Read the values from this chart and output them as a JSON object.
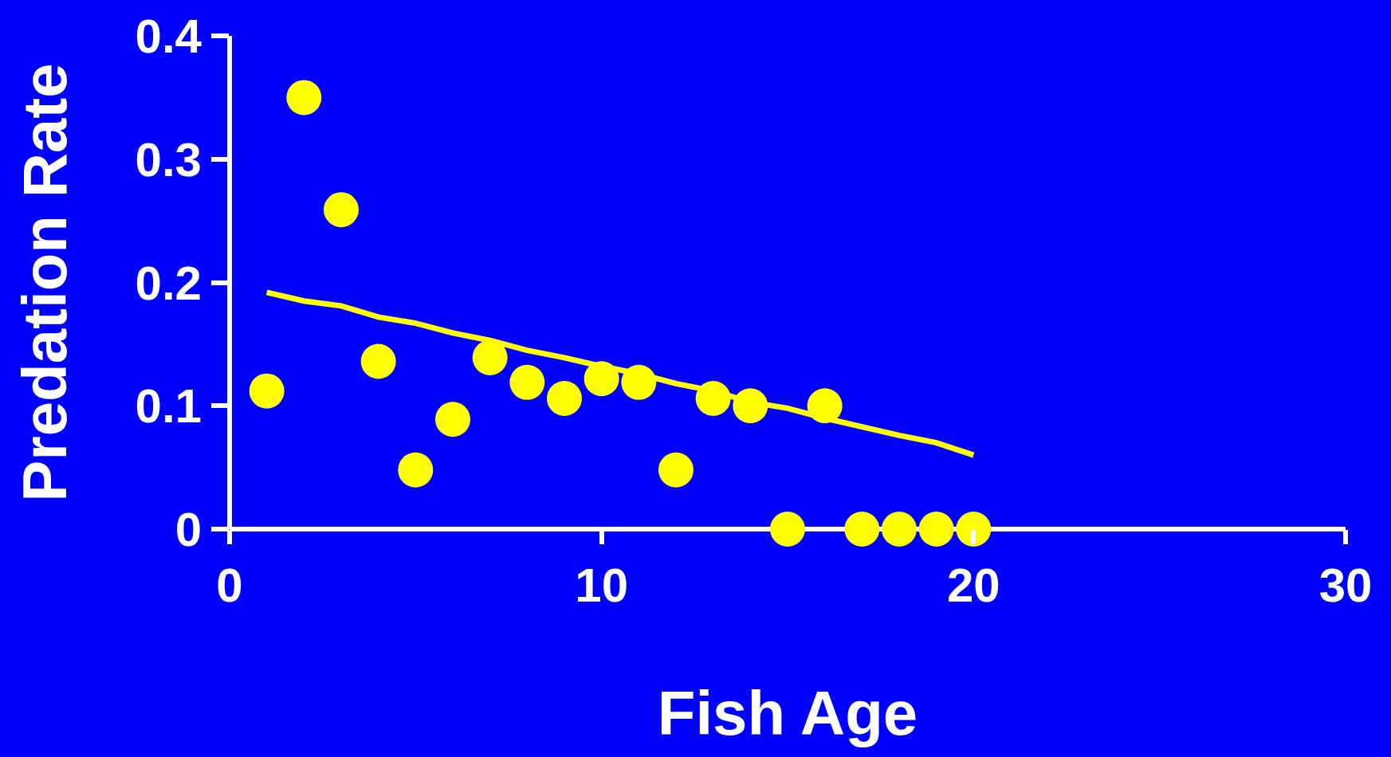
{
  "chart_data": {
    "type": "scatter",
    "xlabel": "Fish Age",
    "ylabel": "Predation Rate",
    "xlim": [
      0,
      30
    ],
    "xticks": [
      0,
      10,
      20,
      30
    ],
    "ylim": [
      0,
      0.4
    ],
    "yticks": [
      0,
      0.1,
      0.2,
      0.3,
      0.4
    ],
    "grid": false,
    "series": [
      {
        "marker": "circle",
        "color": "#ffff00",
        "x": [
          1,
          2,
          3,
          4,
          5,
          6,
          7,
          8,
          9,
          10,
          11,
          12,
          13,
          14,
          15,
          16,
          17,
          18,
          19,
          20
        ],
        "values": [
          0.112,
          0.35,
          0.259,
          0.136,
          0.048,
          0.089,
          0.139,
          0.119,
          0.106,
          0.122,
          0.119,
          0.048,
          0.106,
          0.1,
          0,
          0.1,
          0,
          0,
          0,
          0
        ]
      },
      {
        "type": "line",
        "color": "#ffff00",
        "line_style": "solid",
        "x": [
          1,
          2,
          3,
          4,
          5,
          6,
          7,
          8,
          9,
          10,
          11,
          12,
          13,
          14,
          15,
          16,
          17,
          18,
          19,
          20
        ],
        "values": [
          0.192,
          0.185,
          0.181,
          0.172,
          0.167,
          0.159,
          0.153,
          0.145,
          0.139,
          0.132,
          0.126,
          0.118,
          0.112,
          0.103,
          0.098,
          0.09,
          0.083,
          0.076,
          0.07,
          0.06
        ]
      }
    ]
  }
}
